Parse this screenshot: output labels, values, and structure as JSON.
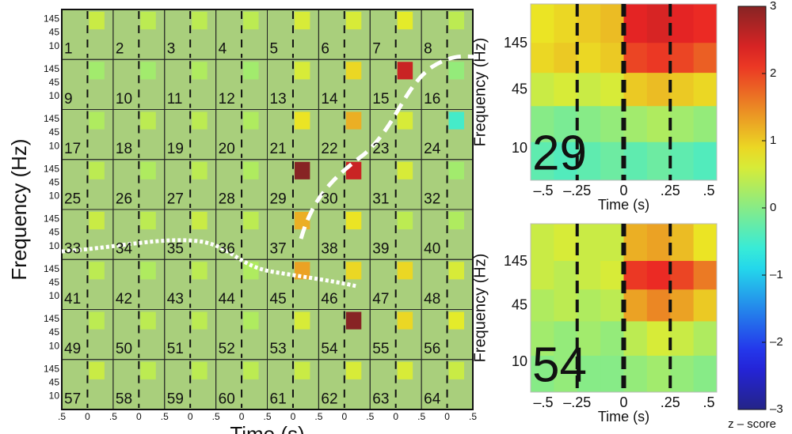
{
  "chart_data": [
    {
      "type": "electrode-grid",
      "xlabel": "Time (s)",
      "ylabel": "Frequency (Hz)",
      "electrodes": [
        1,
        2,
        3,
        4,
        5,
        6,
        7,
        8,
        9,
        10,
        11,
        12,
        13,
        14,
        15,
        16,
        17,
        18,
        19,
        20,
        21,
        22,
        23,
        24,
        25,
        26,
        27,
        28,
        29,
        30,
        31,
        32,
        33,
        34,
        35,
        36,
        37,
        38,
        39,
        40,
        41,
        42,
        43,
        44,
        45,
        46,
        47,
        48,
        49,
        50,
        51,
        52,
        53,
        54,
        55,
        56,
        57,
        58,
        59,
        60,
        61,
        62,
        63,
        64
      ],
      "values": [
        0.5,
        0.4,
        0.4,
        0.4,
        0.6,
        0.6,
        0.7,
        0.4,
        0.2,
        0.2,
        0.3,
        0.2,
        0.6,
        0.9,
        2.5,
        0.1,
        0.3,
        0.4,
        0.4,
        0.3,
        0.8,
        1.2,
        0.6,
        -0.5,
        0.4,
        0.3,
        0.4,
        0.3,
        3,
        2.5,
        0.6,
        0.2,
        0.5,
        0.4,
        0.5,
        0.4,
        1.2,
        0.8,
        0.4,
        0.3,
        0.4,
        0.3,
        0.4,
        0.3,
        1.3,
        0.9,
        0.9,
        0.6,
        0.4,
        0.4,
        0.4,
        0.3,
        0.6,
        3,
        0.9,
        0.7,
        0.5,
        0.4,
        0.4,
        0.4,
        0.5,
        0.6,
        0.6,
        0.5
      ],
      "cell_yticks": [
        "145",
        "45",
        "10"
      ],
      "xtick_labels": [
        ".5",
        "0",
        ".5",
        "0",
        ".5",
        "0",
        ".5",
        "0",
        ".5",
        "0",
        ".5",
        "0",
        ".5",
        "0",
        ".5",
        "0",
        ".5"
      ]
    },
    {
      "type": "heatmap",
      "label": "29",
      "xlabel": "Time (s)",
      "ylabel": "Frequency (Hz)",
      "xlim": [
        -0.5,
        0.5
      ],
      "ylim": [
        4.5,
        400
      ],
      "log_y": true,
      "xticks": [
        {
          "value": -0.5,
          "label": "–.5"
        },
        {
          "value": -0.25,
          "label": "–.25"
        },
        0,
        {
          "value": 0.25,
          "label": ".25"
        },
        {
          "value": 0.5,
          "label": ".5"
        }
      ],
      "yticks": [
        145,
        45,
        10
      ],
      "x_bins": [
        -0.5,
        -0.375,
        -0.25,
        -0.125,
        0,
        0.125,
        0.25,
        0.375,
        0.5
      ],
      "y_bins": [
        4.5,
        12,
        30,
        70,
        150,
        400
      ],
      "values": [
        [
          -0.3,
          -0.4,
          -0.3,
          -0.2,
          -0.3,
          -0.2,
          -0.3,
          -0.4
        ],
        [
          0,
          -0.1,
          0,
          0.1,
          0.2,
          0.3,
          0.2,
          0.1
        ],
        [
          0.5,
          0.6,
          0.5,
          0.6,
          1.0,
          1.1,
          1.0,
          0.9
        ],
        [
          0.9,
          1.0,
          0.9,
          1.0,
          2.0,
          2.1,
          2.0,
          1.8
        ],
        [
          0.8,
          0.9,
          1.0,
          1.1,
          2.3,
          2.4,
          2.3,
          2.2
        ]
      ]
    },
    {
      "type": "heatmap",
      "label": "54",
      "xlabel": "Time (s)",
      "ylabel": "Frequency (Hz)",
      "xlim": [
        -0.5,
        0.5
      ],
      "ylim": [
        4.5,
        400
      ],
      "log_y": true,
      "xticks": [
        {
          "value": -0.5,
          "label": "–.5"
        },
        {
          "value": -0.25,
          "label": "–.25"
        },
        0,
        {
          "value": 0.25,
          "label": ".25"
        },
        {
          "value": 0.5,
          "label": ".5"
        }
      ],
      "yticks": [
        145,
        45,
        10
      ],
      "x_bins": [
        -0.5,
        -0.375,
        -0.25,
        -0.125,
        0,
        0.125,
        0.25,
        0.375,
        0.5
      ],
      "y_bins": [
        4.5,
        12,
        30,
        70,
        150,
        400
      ],
      "values": [
        [
          0,
          0.1,
          0,
          0,
          0.1,
          0.2,
          0.1,
          0
        ],
        [
          0.2,
          0.1,
          0.2,
          0.1,
          0.4,
          0.6,
          0.5,
          0.3
        ],
        [
          0.3,
          0.4,
          0.3,
          0.4,
          1.3,
          1.5,
          1.3,
          1.0
        ],
        [
          0.5,
          0.4,
          0.5,
          0.6,
          2.1,
          2.2,
          2.0,
          1.6
        ],
        [
          0.5,
          0.6,
          0.5,
          0.5,
          1.2,
          1.3,
          1.1,
          0.8
        ]
      ]
    },
    {
      "type": "colorbar",
      "label": "z – score",
      "ylim": [
        -3,
        3
      ],
      "yticks": [
        3,
        2,
        1,
        0,
        {
          "value": -1,
          "label": "–1"
        },
        {
          "value": -2,
          "label": "–2"
        },
        {
          "value": -3,
          "label": "–3"
        }
      ]
    }
  ]
}
